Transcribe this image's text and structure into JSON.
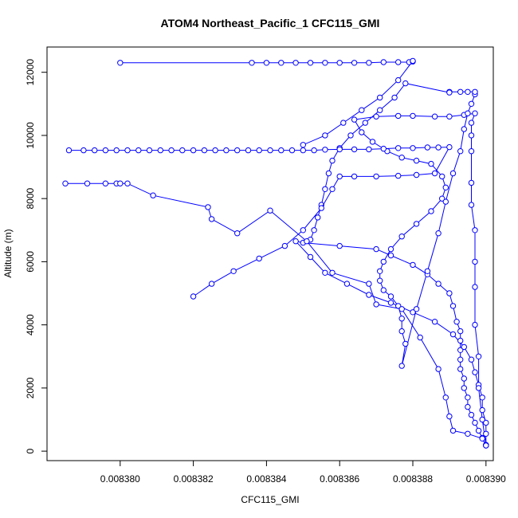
{
  "chart_data": {
    "type": "line",
    "title": "ATOM4 Northeast_Pacific_1 CFC115_GMI",
    "xlabel": "CFC115_GMI",
    "ylabel": "Altitude (m)",
    "xlim": [
      0.008378,
      0.0083902
    ],
    "ylim": [
      -300,
      12800
    ],
    "x_ticks": [
      0.00838,
      0.008382,
      0.008384,
      0.008386,
      0.008388,
      0.00839
    ],
    "x_tick_labels": [
      "0.008380",
      "0.008382",
      "0.008384",
      "0.008386",
      "0.008388",
      "0.008390"
    ],
    "y_ticks": [
      0,
      2000,
      4000,
      6000,
      8000,
      10000,
      12000
    ],
    "y_tick_labels": [
      "0",
      "2000",
      "4000",
      "6000",
      "8000",
      "10000",
      "12000"
    ],
    "grid": false,
    "legend": "none",
    "series": [
      {
        "color": "#0000ff",
        "marker": "open-circle",
        "points": [
          [
            0.00839,
            180
          ],
          [
            0.0083899,
            420
          ],
          [
            0.0083898,
            650
          ],
          [
            0.0083897,
            900
          ],
          [
            0.0083896,
            1150
          ],
          [
            0.0083895,
            1400
          ],
          [
            0.0083895,
            1700
          ],
          [
            0.0083894,
            2000
          ],
          [
            0.0083894,
            2300
          ],
          [
            0.0083893,
            2600
          ],
          [
            0.0083893,
            2900
          ],
          [
            0.0083893,
            3200
          ],
          [
            0.0083893,
            3500
          ],
          [
            0.0083893,
            3800
          ],
          [
            0.0083892,
            4100
          ],
          [
            0.0083891,
            4600
          ],
          [
            0.008389,
            5000
          ],
          [
            0.0083887,
            5300
          ],
          [
            0.0083884,
            5600
          ],
          [
            0.008388,
            5900
          ],
          [
            0.0083874,
            6200
          ],
          [
            0.008387,
            6400
          ],
          [
            0.008386,
            6500
          ],
          [
            0.008385,
            6600
          ],
          [
            0.0083848,
            6650
          ],
          [
            0.0083852,
            6150
          ],
          [
            0.0083856,
            5650
          ],
          [
            0.0083862,
            5300
          ],
          [
            0.0083868,
            4950
          ],
          [
            0.0083874,
            4700
          ],
          [
            0.008388,
            4400
          ],
          [
            0.0083886,
            4100
          ],
          [
            0.0083891,
            3700
          ],
          [
            0.0083894,
            3300
          ],
          [
            0.0083896,
            2900
          ],
          [
            0.0083897,
            2500
          ],
          [
            0.0083898,
            2100
          ],
          [
            0.0083899,
            1700
          ],
          [
            0.0083899,
            1300
          ],
          [
            0.00839,
            900
          ],
          [
            0.00839,
            550
          ],
          [
            0.00839,
            200
          ],
          [
            0.0083899,
            1000
          ],
          [
            0.0083898,
            2000
          ],
          [
            0.0083898,
            3000
          ],
          [
            0.0083897,
            4000
          ],
          [
            0.0083897,
            5200
          ],
          [
            0.0083897,
            6000
          ],
          [
            0.0083897,
            7000
          ],
          [
            0.0083896,
            7800
          ],
          [
            0.0083896,
            8500
          ],
          [
            0.0083896,
            9500
          ],
          [
            0.0083896,
            10000
          ],
          [
            0.0083896,
            10400
          ],
          [
            0.0083897,
            10700
          ],
          [
            0.0083894,
            10650
          ],
          [
            0.008389,
            10600
          ],
          [
            0.0083886,
            10600
          ],
          [
            0.008388,
            10620
          ],
          [
            0.0083876,
            10620
          ],
          [
            0.008387,
            10600
          ],
          [
            0.0083864,
            10500
          ],
          [
            0.0083866,
            10100
          ],
          [
            0.0083869,
            9800
          ],
          [
            0.0083873,
            9500
          ],
          [
            0.0083877,
            9300
          ],
          [
            0.0083881,
            9200
          ],
          [
            0.0083885,
            9100
          ],
          [
            0.0083888,
            8700
          ],
          [
            0.0083889,
            8350
          ],
          [
            0.0083888,
            8000
          ],
          [
            0.0083885,
            7600
          ],
          [
            0.0083881,
            7200
          ],
          [
            0.0083877,
            6800
          ],
          [
            0.0083874,
            6400
          ],
          [
            0.0083872,
            6000
          ],
          [
            0.0083871,
            5700
          ],
          [
            0.0083871,
            5400
          ],
          [
            0.0083872,
            5100
          ],
          [
            0.0083874,
            4900
          ],
          [
            0.0083876,
            4600
          ],
          [
            0.0083877,
            4200
          ],
          [
            0.0083877,
            3800
          ],
          [
            0.0083878,
            3400
          ],
          [
            0.0083877,
            2700
          ],
          [
            0.0083881,
            4500
          ],
          [
            0.0083884,
            5700
          ],
          [
            0.0083887,
            6900
          ],
          [
            0.0083889,
            7900
          ],
          [
            0.0083891,
            8800
          ],
          [
            0.0083893,
            9500
          ],
          [
            0.0083894,
            10200
          ],
          [
            0.0083895,
            10700
          ],
          [
            0.0083896,
            11000
          ],
          [
            0.0083897,
            11300
          ],
          [
            0.0083897,
            11380
          ],
          [
            0.0083895,
            11380
          ],
          [
            0.0083893,
            11380
          ],
          [
            0.008389,
            11380
          ],
          [
            0.008389,
            11360
          ],
          [
            0.0083878,
            11650
          ],
          [
            0.0083875,
            11200
          ],
          [
            0.0083871,
            10800
          ],
          [
            0.0083867,
            10400
          ],
          [
            0.0083863,
            10000
          ],
          [
            0.008386,
            9600
          ],
          [
            0.0083858,
            9200
          ],
          [
            0.0083857,
            8800
          ],
          [
            0.0083856,
            8300
          ],
          [
            0.0083855,
            7800
          ],
          [
            0.0083854,
            7400
          ],
          [
            0.0083853,
            7000
          ],
          [
            0.0083852,
            6700
          ]
        ]
      },
      {
        "color": "#0000ff",
        "marker": "open-circle",
        "points": [
          [
            0.00838,
            12300
          ],
          [
            0.0083836,
            12300
          ],
          [
            0.008384,
            12300
          ],
          [
            0.0083844,
            12300
          ],
          [
            0.0083848,
            12300
          ],
          [
            0.0083852,
            12300
          ],
          [
            0.0083856,
            12300
          ],
          [
            0.008386,
            12300
          ],
          [
            0.0083864,
            12300
          ],
          [
            0.0083868,
            12300
          ],
          [
            0.0083872,
            12320
          ],
          [
            0.0083876,
            12320
          ],
          [
            0.0083879,
            12320
          ],
          [
            0.008388,
            12340
          ],
          [
            0.008388,
            12360
          ],
          [
            0.0083876,
            11750
          ],
          [
            0.0083871,
            11200
          ],
          [
            0.0083866,
            10800
          ],
          [
            0.0083861,
            10400
          ],
          [
            0.0083856,
            10000
          ],
          [
            0.008385,
            9700
          ]
        ]
      },
      {
        "color": "#0000ff",
        "marker": "open-circle",
        "points": [
          [
            0.0083786,
            9530
          ],
          [
            0.008379,
            9530
          ],
          [
            0.0083793,
            9530
          ],
          [
            0.0083796,
            9530
          ],
          [
            0.0083799,
            9530
          ],
          [
            0.0083802,
            9530
          ],
          [
            0.0083805,
            9530
          ],
          [
            0.0083808,
            9530
          ],
          [
            0.0083811,
            9530
          ],
          [
            0.0083814,
            9530
          ],
          [
            0.0083817,
            9530
          ],
          [
            0.008382,
            9530
          ],
          [
            0.0083823,
            9530
          ],
          [
            0.0083826,
            9530
          ],
          [
            0.0083829,
            9530
          ],
          [
            0.0083832,
            9530
          ],
          [
            0.0083835,
            9530
          ],
          [
            0.0083838,
            9530
          ],
          [
            0.0083841,
            9530
          ],
          [
            0.0083844,
            9530
          ],
          [
            0.0083847,
            9530
          ],
          [
            0.008385,
            9530
          ],
          [
            0.0083853,
            9530
          ],
          [
            0.0083856,
            9550
          ],
          [
            0.008386,
            9560
          ],
          [
            0.0083864,
            9560
          ],
          [
            0.0083868,
            9560
          ],
          [
            0.0083872,
            9580
          ],
          [
            0.0083876,
            9600
          ],
          [
            0.008388,
            9600
          ],
          [
            0.0083884,
            9620
          ],
          [
            0.0083887,
            9620
          ],
          [
            0.008389,
            9630
          ],
          [
            0.0083886,
            8800
          ],
          [
            0.0083881,
            8750
          ],
          [
            0.0083876,
            8720
          ],
          [
            0.008387,
            8700
          ],
          [
            0.0083864,
            8700
          ],
          [
            0.008386,
            8700
          ],
          [
            0.0083858,
            8300
          ],
          [
            0.0083855,
            7700
          ],
          [
            0.008385,
            7000
          ],
          [
            0.0083845,
            6500
          ],
          [
            0.0083838,
            6100
          ],
          [
            0.0083831,
            5700
          ],
          [
            0.0083825,
            5300
          ],
          [
            0.008382,
            4900
          ]
        ]
      },
      {
        "color": "#0000ff",
        "marker": "open-circle",
        "points": [
          [
            0.0083785,
            8480
          ],
          [
            0.0083791,
            8480
          ],
          [
            0.0083796,
            8480
          ],
          [
            0.0083799,
            8480
          ],
          [
            0.00838,
            8480
          ],
          [
            0.0083802,
            8480
          ],
          [
            0.0083809,
            8100
          ],
          [
            0.0083824,
            7730
          ],
          [
            0.0083825,
            7350
          ],
          [
            0.0083832,
            6900
          ],
          [
            0.0083841,
            7620
          ],
          [
            0.0083851,
            6650
          ],
          [
            0.0083858,
            5650
          ],
          [
            0.0083868,
            5300
          ],
          [
            0.008387,
            4650
          ],
          [
            0.0083877,
            4500
          ],
          [
            0.0083882,
            3600
          ],
          [
            0.0083887,
            2600
          ],
          [
            0.0083889,
            1700
          ],
          [
            0.008389,
            1100
          ],
          [
            0.0083891,
            650
          ],
          [
            0.0083895,
            550
          ],
          [
            0.0083899,
            400
          ],
          [
            0.00839,
            180
          ]
        ]
      }
    ]
  }
}
